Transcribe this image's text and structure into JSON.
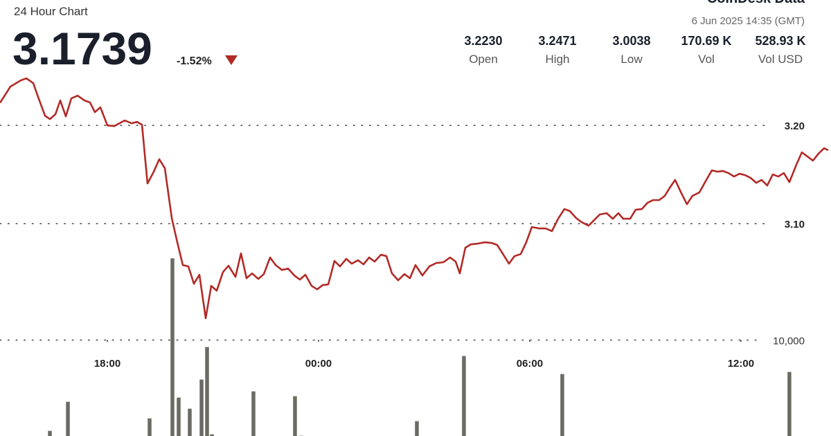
{
  "header": {
    "subtitle": "24 Hour Chart",
    "price": "3.1739",
    "change": "-1.52%",
    "brand": "CoinDesk Data",
    "timestamp": "6 Jun 2025 14:35 (GMT)",
    "stats": [
      {
        "value": "3.2230",
        "label": "Open"
      },
      {
        "value": "3.2471",
        "label": "High"
      },
      {
        "value": "3.0038",
        "label": "Low"
      },
      {
        "value": "170.69 K",
        "label": "Vol"
      },
      {
        "value": "528.93 K",
        "label": "Vol USD"
      }
    ]
  },
  "chart_data": {
    "type": "line",
    "grid": true,
    "xlim": [
      14.95,
      38.56
    ],
    "xticks": [
      {
        "value": 18,
        "label": "18:00"
      },
      {
        "value": 24,
        "label": "00:00"
      },
      {
        "value": 30,
        "label": "06:00"
      },
      {
        "value": 36,
        "label": "12:00"
      }
    ],
    "ylim": [
      2.88,
      3.26
    ],
    "yticks": [
      {
        "value": 3.2,
        "label": "3.20"
      },
      {
        "value": 3.1,
        "label": "3.10"
      }
    ],
    "y2lim": [
      0,
      37430
    ],
    "y2ticks": [
      {
        "value": 10000,
        "label": "10,000"
      }
    ],
    "series": [
      {
        "color": "#b22a26",
        "x": [
          14.951,
          15.246,
          15.541,
          15.698,
          15.895,
          16.033,
          16.229,
          16.367,
          16.525,
          16.662,
          16.82,
          16.977,
          17.154,
          17.351,
          17.508,
          17.646,
          17.803,
          18,
          18.197,
          18.492,
          18.689,
          18.846,
          18.984,
          19.141,
          19.318,
          19.475,
          19.633,
          19.83,
          19.987,
          20.144,
          20.302,
          20.459,
          20.616,
          20.794,
          20.951,
          21.108,
          21.285,
          21.443,
          21.64,
          21.797,
          21.954,
          22.112,
          22.289,
          22.446,
          22.623,
          22.781,
          22.958,
          23.135,
          23.312,
          23.469,
          23.627,
          23.804,
          23.961,
          24.118,
          24.276,
          24.453,
          24.61,
          24.787,
          24.945,
          25.122,
          25.279,
          25.436,
          25.594,
          25.771,
          25.928,
          26.086,
          26.263,
          26.44,
          26.597,
          26.754,
          26.951,
          27.148,
          27.345,
          27.541,
          27.738,
          27.896,
          28.014,
          28.171,
          28.328,
          28.525,
          28.722,
          28.919,
          29.076,
          29.253,
          29.41,
          29.568,
          29.745,
          29.902,
          30.06,
          30.256,
          30.453,
          30.63,
          30.807,
          30.984,
          31.142,
          31.319,
          31.476,
          31.673,
          31.83,
          31.988,
          32.184,
          32.361,
          32.519,
          32.656,
          32.853,
          33.01,
          33.188,
          33.345,
          33.502,
          33.679,
          33.837,
          33.994,
          34.132,
          34.289,
          34.466,
          34.624,
          34.82,
          35.017,
          35.175,
          35.332,
          35.489,
          35.647,
          35.804,
          35.961,
          36.119,
          36.276,
          36.434,
          36.591,
          36.748,
          36.906,
          37.063,
          37.22,
          37.378,
          37.575,
          37.732,
          37.889,
          38.047,
          38.204,
          38.362,
          38.48
        ],
        "values": [
          3.223,
          3.2395,
          3.2458,
          3.2479,
          3.243,
          3.2289,
          3.2099,
          3.2064,
          3.2113,
          3.2254,
          3.2092,
          3.2275,
          3.2303,
          3.2254,
          3.2233,
          3.2135,
          3.2184,
          3.2,
          3.1993,
          3.205,
          3.2022,
          3.2036,
          3.2007,
          3.1409,
          3.1529,
          3.1656,
          3.1564,
          3.1057,
          3.0811,
          3.0579,
          3.0565,
          3.0389,
          3.048,
          3.0038,
          3.0367,
          3.0318,
          3.0508,
          3.0572,
          3.0459,
          3.0698,
          3.0445,
          3.0494,
          3.0438,
          3.0487,
          3.0656,
          3.0579,
          3.0529,
          3.0543,
          3.0473,
          3.0431,
          3.048,
          3.0367,
          3.0332,
          3.0375,
          3.0382,
          3.0621,
          3.0565,
          3.0642,
          3.0593,
          3.0628,
          3.0586,
          3.0656,
          3.0614,
          3.0684,
          3.067,
          3.0494,
          3.0424,
          3.0487,
          3.0445,
          3.0579,
          3.0473,
          3.0565,
          3.06,
          3.0607,
          3.0656,
          3.0614,
          3.0494,
          3.0755,
          3.079,
          3.0797,
          3.0811,
          3.0804,
          3.0783,
          3.0684,
          3.0593,
          3.067,
          3.0691,
          3.0811,
          3.0966,
          3.0952,
          3.0952,
          3.0924,
          3.105,
          3.1149,
          3.1128,
          3.1057,
          3.1015,
          3.098,
          3.1036,
          3.1093,
          3.1107,
          3.105,
          3.1107,
          3.105,
          3.105,
          3.1142,
          3.1149,
          3.1212,
          3.124,
          3.124,
          3.1283,
          3.1374,
          3.1445,
          3.1325,
          3.1198,
          3.1283,
          3.1318,
          3.1445,
          3.1543,
          3.1529,
          3.1536,
          3.1515,
          3.148,
          3.1508,
          3.1494,
          3.1466,
          3.1416,
          3.1445,
          3.1388,
          3.1501,
          3.148,
          3.1515,
          3.1423,
          3.1599,
          3.1726,
          3.1684,
          3.1642,
          3.1712,
          3.1768,
          3.1747
        ]
      },
      {
        "type": "bar",
        "axis": "y2",
        "color": "#6b6b63",
        "x": [
          16.367,
          16.879,
          19.2,
          19.849,
          20.026,
          20.341,
          20.676,
          20.833,
          20.971,
          22.151,
          23.331,
          23.508,
          26.794,
          28.131,
          30.925,
          37.378
        ],
        "values": [
          903,
          3819,
          2153,
          18194,
          4236,
          3125,
          6042,
          9306,
          556,
          4861,
          4375,
          417,
          1875,
          8403,
          6597,
          6806
        ]
      }
    ]
  }
}
